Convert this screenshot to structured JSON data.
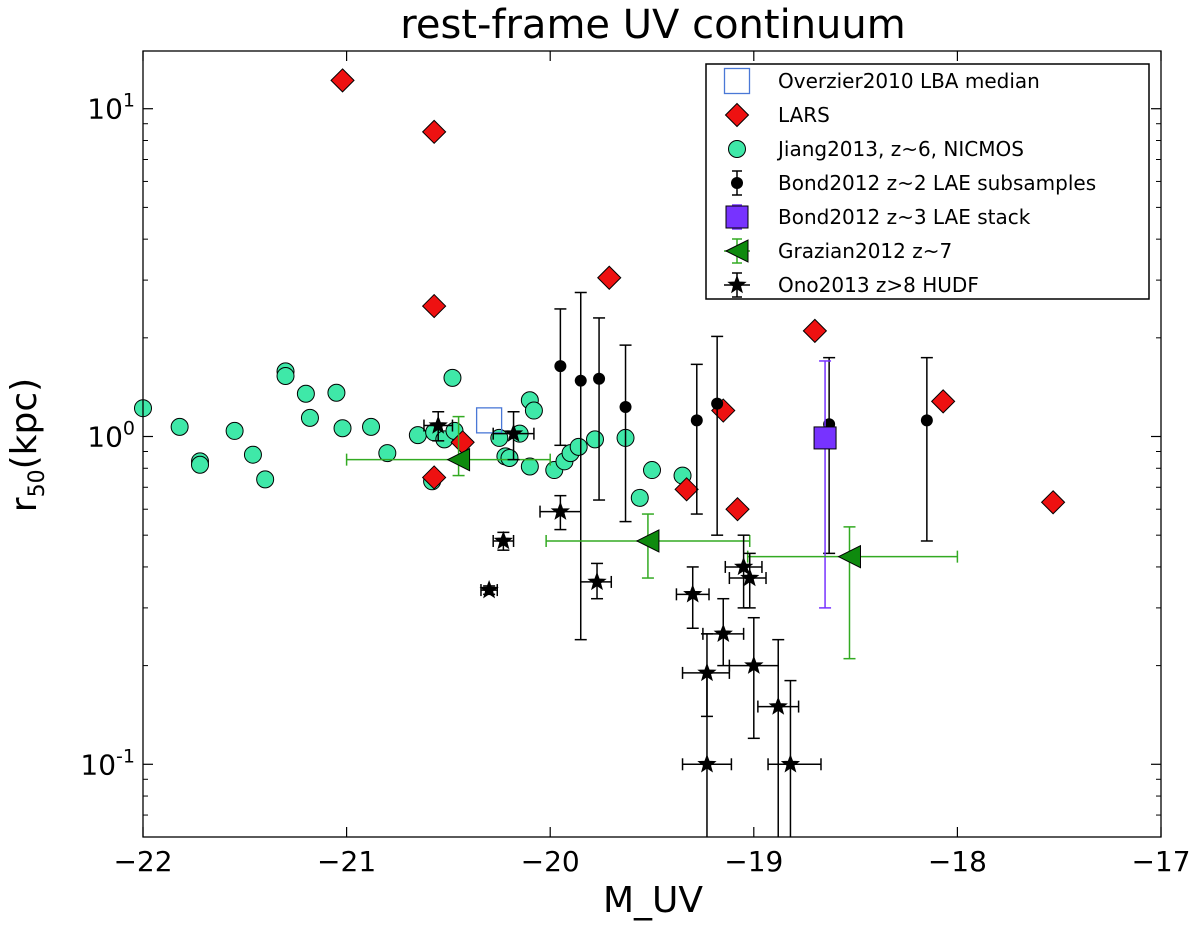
{
  "chart_data": {
    "type": "scatter",
    "title": "rest-frame UV continuum",
    "xlabel": "M_UV",
    "ylabel": "r",
    "ylabel_sub": "50",
    "ylabel_unit": "(kpc)",
    "xlim": [
      -22,
      -17
    ],
    "ylim": [
      0.06,
      15
    ],
    "yscale": "log",
    "grid": false,
    "legend_position": "top-right",
    "x_ticks": [
      {
        "value": -22,
        "label": "−22"
      },
      {
        "value": -21,
        "label": "−21"
      },
      {
        "value": -20,
        "label": "−20"
      },
      {
        "value": -19,
        "label": "−19"
      },
      {
        "value": -18,
        "label": "−18"
      },
      {
        "value": -17,
        "label": "−17"
      }
    ],
    "y_ticks": [
      {
        "value": 0.1,
        "base": "10",
        "exp": "-1"
      },
      {
        "value": 1,
        "base": "10",
        "exp": "0"
      },
      {
        "value": 10,
        "base": "10",
        "exp": "1"
      }
    ],
    "series": [
      {
        "name": "Overzier2010 LBA median",
        "marker": "square-open",
        "color": "#4a78d6",
        "points": [
          {
            "x": -20.3,
            "y": 1.12
          }
        ]
      },
      {
        "name": "LARS",
        "marker": "diamond",
        "color": "#ee1111",
        "points": [
          {
            "x": -21.02,
            "y": 12.2
          },
          {
            "x": -20.57,
            "y": 8.5
          },
          {
            "x": -20.57,
            "y": 2.5
          },
          {
            "x": -19.71,
            "y": 3.05
          },
          {
            "x": -18.7,
            "y": 2.1
          },
          {
            "x": -18.07,
            "y": 1.28
          },
          {
            "x": -19.15,
            "y": 1.2
          },
          {
            "x": -20.57,
            "y": 0.75
          },
          {
            "x": -20.43,
            "y": 0.96
          },
          {
            "x": -19.33,
            "y": 0.69
          },
          {
            "x": -19.08,
            "y": 0.6
          },
          {
            "x": -17.53,
            "y": 0.63
          }
        ]
      },
      {
        "name": "Jiang2013, z~6, NICMOS",
        "marker": "circle",
        "color": "#3fe8a8",
        "points": [
          {
            "x": -22.0,
            "y": 1.22
          },
          {
            "x": -21.82,
            "y": 1.07
          },
          {
            "x": -21.72,
            "y": 0.84
          },
          {
            "x": -21.72,
            "y": 0.82
          },
          {
            "x": -21.55,
            "y": 1.04
          },
          {
            "x": -21.46,
            "y": 0.88
          },
          {
            "x": -21.4,
            "y": 0.74
          },
          {
            "x": -21.3,
            "y": 1.58
          },
          {
            "x": -21.3,
            "y": 1.53
          },
          {
            "x": -21.2,
            "y": 1.35
          },
          {
            "x": -21.18,
            "y": 1.14
          },
          {
            "x": -21.05,
            "y": 1.36
          },
          {
            "x": -21.02,
            "y": 1.06
          },
          {
            "x": -20.88,
            "y": 1.07
          },
          {
            "x": -20.8,
            "y": 0.89
          },
          {
            "x": -20.65,
            "y": 1.01
          },
          {
            "x": -20.58,
            "y": 0.73
          },
          {
            "x": -20.57,
            "y": 1.03
          },
          {
            "x": -20.52,
            "y": 0.98
          },
          {
            "x": -20.48,
            "y": 1.51
          },
          {
            "x": -20.47,
            "y": 1.04
          },
          {
            "x": -20.25,
            "y": 0.99
          },
          {
            "x": -20.22,
            "y": 0.87
          },
          {
            "x": -20.2,
            "y": 0.86
          },
          {
            "x": -20.15,
            "y": 1.02
          },
          {
            "x": -20.1,
            "y": 1.29
          },
          {
            "x": -20.08,
            "y": 1.2
          },
          {
            "x": -20.1,
            "y": 0.81
          },
          {
            "x": -19.98,
            "y": 0.79
          },
          {
            "x": -19.93,
            "y": 0.84
          },
          {
            "x": -19.9,
            "y": 0.89
          },
          {
            "x": -19.86,
            "y": 0.93
          },
          {
            "x": -19.78,
            "y": 0.98
          },
          {
            "x": -19.63,
            "y": 0.99
          },
          {
            "x": -19.56,
            "y": 0.65
          },
          {
            "x": -19.5,
            "y": 0.79
          },
          {
            "x": -19.35,
            "y": 0.76
          }
        ]
      },
      {
        "name": "Bond2012 z~2 LAE subsamples",
        "marker": "circle-small",
        "color": "#000000",
        "points": [
          {
            "x": -19.95,
            "y": 1.64,
            "ylo": 0.94,
            "yhi": 2.45
          },
          {
            "x": -19.85,
            "y": 1.48,
            "ylo": 0.24,
            "yhi": 2.75
          },
          {
            "x": -19.76,
            "y": 1.5,
            "ylo": 0.64,
            "yhi": 2.3
          },
          {
            "x": -19.63,
            "y": 1.23,
            "ylo": 0.55,
            "yhi": 1.9
          },
          {
            "x": -19.28,
            "y": 1.12,
            "ylo": 0.58,
            "yhi": 1.66
          },
          {
            "x": -19.18,
            "y": 1.26,
            "ylo": 0.5,
            "yhi": 2.02
          },
          {
            "x": -18.63,
            "y": 1.09,
            "ylo": 0.44,
            "yhi": 1.74
          },
          {
            "x": -18.15,
            "y": 1.12,
            "ylo": 0.48,
            "yhi": 1.74
          }
        ]
      },
      {
        "name": "Bond2012 z~3 LAE stack",
        "marker": "square",
        "color": "#7733ff",
        "points": [
          {
            "x": -18.65,
            "y": 0.99,
            "ylo": 0.3,
            "yhi": 1.7
          }
        ]
      },
      {
        "name": "Grazian2012 z~7",
        "marker": "triangle-left",
        "color": "#0e8a0e",
        "err_color": "#33aa22",
        "points": [
          {
            "x": -20.45,
            "y": 0.85,
            "xlo": -21.0,
            "xhi": -20.0,
            "ylo": 0.76,
            "yhi": 1.15
          },
          {
            "x": -19.52,
            "y": 0.48,
            "xlo": -20.02,
            "xhi": -19.02,
            "ylo": 0.37,
            "yhi": 0.58
          },
          {
            "x": -18.53,
            "y": 0.43,
            "xlo": -19.03,
            "xhi": -18.0,
            "ylo": 0.21,
            "yhi": 0.53
          }
        ]
      },
      {
        "name": "Ono2013 z>8 HUDF",
        "marker": "star",
        "color": "#000000",
        "points": [
          {
            "x": -20.55,
            "y": 1.08,
            "xlo": -20.62,
            "xhi": -20.48,
            "ylo": 0.97,
            "yhi": 1.19
          },
          {
            "x": -20.18,
            "y": 1.02,
            "xlo": -20.28,
            "xhi": -20.08,
            "ylo": 0.85,
            "yhi": 1.19
          },
          {
            "x": -19.95,
            "y": 0.59,
            "xlo": -20.05,
            "xhi": -19.85,
            "ylo": 0.52,
            "yhi": 0.66
          },
          {
            "x": -20.23,
            "y": 0.48,
            "xlo": -20.28,
            "xhi": -20.18,
            "ylo": 0.45,
            "yhi": 0.51
          },
          {
            "x": -20.3,
            "y": 0.34,
            "xlo": -20.34,
            "xhi": -20.26,
            "ylo": 0.33,
            "yhi": 0.35
          },
          {
            "x": -19.77,
            "y": 0.36,
            "xlo": -19.85,
            "xhi": -19.7,
            "ylo": 0.32,
            "yhi": 0.41
          },
          {
            "x": -19.3,
            "y": 0.33,
            "xlo": -19.38,
            "xhi": -19.22,
            "ylo": 0.26,
            "yhi": 0.4
          },
          {
            "x": -19.05,
            "y": 0.4,
            "xlo": -19.14,
            "xhi": -18.96,
            "ylo": 0.3,
            "yhi": 0.5
          },
          {
            "x": -19.02,
            "y": 0.37,
            "xlo": -19.12,
            "xhi": -18.94,
            "ylo": 0.3,
            "yhi": 0.44
          },
          {
            "x": -19.15,
            "y": 0.25,
            "xlo": -19.25,
            "xhi": -19.05,
            "ylo": 0.2,
            "yhi": 0.32
          },
          {
            "x": -19.23,
            "y": 0.19,
            "xlo": -19.35,
            "xhi": -19.12,
            "ylo": 0.14,
            "yhi": 0.25
          },
          {
            "x": -19.0,
            "y": 0.2,
            "xlo": -19.12,
            "xhi": -18.88,
            "ylo": 0.12,
            "yhi": 0.28
          },
          {
            "x": -18.88,
            "y": 0.15,
            "xlo": -18.98,
            "xhi": -18.78,
            "ylo": 0.05,
            "yhi": 0.24
          },
          {
            "x": -19.23,
            "y": 0.1,
            "xlo": -19.35,
            "xhi": -19.11,
            "ylo": 0.05,
            "yhi": 0.19
          },
          {
            "x": -18.82,
            "y": 0.1,
            "xlo": -18.93,
            "xhi": -18.67,
            "ylo": 0.05,
            "yhi": 0.18
          }
        ]
      }
    ]
  }
}
